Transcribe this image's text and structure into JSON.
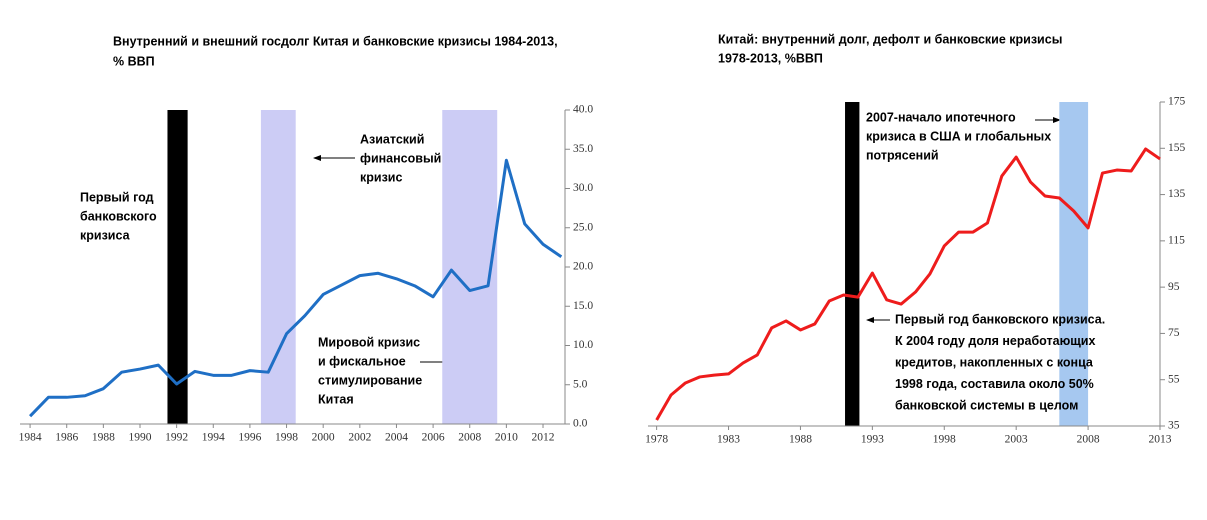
{
  "chart_data": [
    {
      "type": "line",
      "title": [
        "Внутренний и внешний госдолг Китая и банковские кризисы 1984-2013,",
        "% ВВП"
      ],
      "x": [
        1984,
        1985,
        1986,
        1987,
        1988,
        1989,
        1990,
        1991,
        1992,
        1993,
        1994,
        1995,
        1996,
        1997,
        1998,
        1999,
        2000,
        2001,
        2002,
        2003,
        2004,
        2005,
        2006,
        2007,
        2008,
        2009,
        2010,
        2011,
        2012,
        2013
      ],
      "series": [
        {
          "color": "#1f6fc5",
          "values": [
            1.0,
            3.4,
            3.4,
            3.6,
            4.5,
            6.6,
            7.0,
            7.5,
            5.1,
            6.7,
            6.2,
            6.2,
            6.8,
            6.6,
            11.5,
            13.8,
            16.5,
            17.7,
            18.9,
            19.2,
            18.5,
            17.6,
            16.2,
            19.6,
            17.0,
            17.6,
            33.6,
            25.5,
            22.9,
            21.3
          ]
        }
      ],
      "xlim": [
        1983.45,
        2013.2
      ],
      "xticks": [
        1984,
        1986,
        1988,
        1990,
        1992,
        1994,
        1996,
        1998,
        2000,
        2002,
        2004,
        2006,
        2008,
        2010,
        2012
      ],
      "ylim": [
        0,
        40
      ],
      "yticks": [
        {
          "value": 0,
          "label": "0.0"
        },
        {
          "value": 5,
          "label": "5.0"
        },
        {
          "value": 10,
          "label": "10.0"
        },
        {
          "value": 15,
          "label": "15.0"
        },
        {
          "value": 20,
          "label": "20.0"
        },
        {
          "value": 25,
          "label": "25.0"
        },
        {
          "value": 30,
          "label": "30.0"
        },
        {
          "value": 35,
          "label": "35.0"
        },
        {
          "value": 40,
          "label": "40.0"
        }
      ],
      "bands": [
        {
          "start": 1991.5,
          "end": 1992.6,
          "color": "#000000"
        },
        {
          "start": 1996.6,
          "end": 1998.5,
          "color": "#ccccf5"
        },
        {
          "start": 2006.5,
          "end": 2009.5,
          "color": "#ccccf5"
        }
      ],
      "annotations": [
        [
          "Азиатский",
          "финансовый",
          "кризис"
        ],
        [
          "Первый год",
          "банковского",
          "кризиса"
        ],
        [
          "Мировой кризис",
          "и фискальное",
          "стимулирование",
          "Китая"
        ]
      ]
    },
    {
      "type": "line",
      "title": [
        "Китай: внутренний долг, дефолт и банковские кризисы",
        "1978-2013, %ВВП"
      ],
      "x": [
        1978,
        1979,
        1980,
        1981,
        1982,
        1983,
        1984,
        1985,
        1986,
        1987,
        1988,
        1989,
        1990,
        1991,
        1992,
        1993,
        1994,
        1995,
        1996,
        1997,
        1998,
        1999,
        2000,
        2001,
        2002,
        2003,
        2004,
        2005,
        2006,
        2007,
        2008,
        2009,
        2010,
        2011,
        2012,
        2013
      ],
      "series": [
        {
          "color": "#ee1c1c",
          "values": [
            37.6,
            48.4,
            53.6,
            56.2,
            57.0,
            57.5,
            62.2,
            65.7,
            77.4,
            80.4,
            76.5,
            79.1,
            89.0,
            91.6,
            90.7,
            101.1,
            89.5,
            87.7,
            92.9,
            100.7,
            112.8,
            118.8,
            118.8,
            122.7,
            143.0,
            151.2,
            140.4,
            134.4,
            133.5,
            127.9,
            120.6,
            144.3,
            145.6,
            145.2,
            154.7,
            150.4
          ]
        }
      ],
      "xlim": [
        1977.4,
        2013
      ],
      "xticks": [
        1978,
        1983,
        1988,
        1993,
        1998,
        2003,
        2008,
        2013
      ],
      "ylim": [
        35,
        175
      ],
      "yticks": [
        35,
        55,
        75,
        95,
        115,
        135,
        155,
        175
      ],
      "bands": [
        {
          "start": 1991.1,
          "end": 1992.1,
          "color": "#000000"
        },
        {
          "start": 2006.0,
          "end": 2008.0,
          "color": "#a6c8f0"
        }
      ],
      "annotations": [
        [
          "2007-начало ипотечного",
          "кризиса в США и глобальных",
          "потрясений"
        ],
        [
          "Первый год банковского кризиса.",
          "К 2004 году доля неработающих",
          "кредитов, накопленных с конца",
          "1998 года, составила около 50%",
          "банковской системы в целом"
        ]
      ]
    }
  ]
}
